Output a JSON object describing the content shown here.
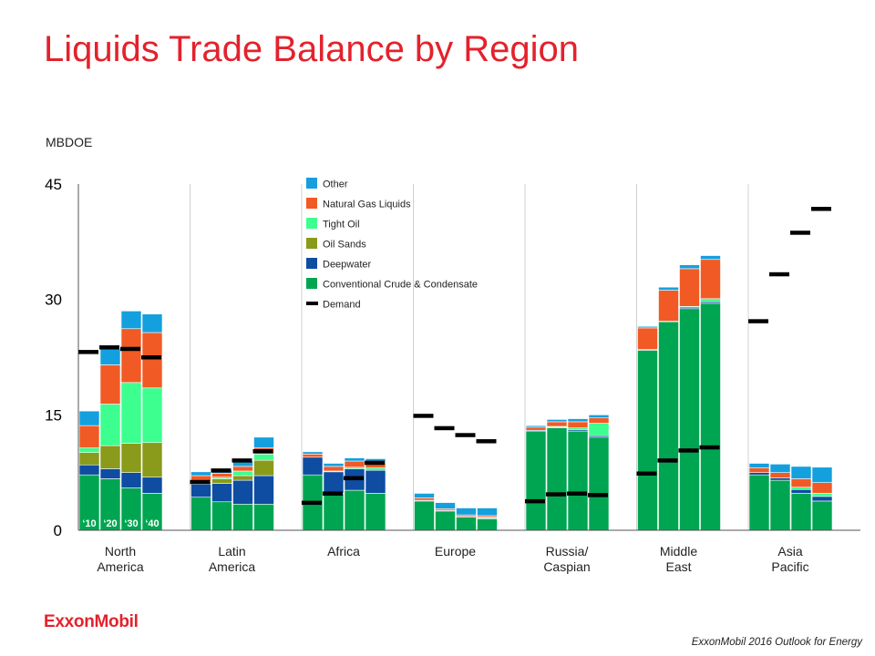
{
  "title": "Liquids Trade Balance by Region",
  "unit_label": "MBDOE",
  "logo_text": "ExxonMobil",
  "footer": "ExxonMobil 2016 Outlook for Energy",
  "chart_data": {
    "type": "bar",
    "stacked": true,
    "ylim": [
      0,
      45
    ],
    "yticks": [
      0,
      15,
      30,
      45
    ],
    "year_labels": [
      "‘10",
      "‘20",
      "‘30",
      "‘40"
    ],
    "colors": {
      "Conventional Crude & Condensate": "#00a551",
      "Deepwater": "#0e4da2",
      "Oil Sands": "#8a9a1b",
      "Tight Oil": "#3dff8f",
      "Natural Gas Liquids": "#f15a24",
      "Other": "#14a0de",
      "Demand": "#000000"
    },
    "legend": [
      "Other",
      "Natural Gas Liquids",
      "Tight Oil",
      "Oil Sands",
      "Deepwater",
      "Conventional Crude & Condensate",
      "Demand"
    ],
    "stack_order": [
      "Conventional Crude & Condensate",
      "Deepwater",
      "Oil Sands",
      "Tight Oil",
      "Natural Gas Liquids",
      "Other"
    ],
    "regions": [
      {
        "name": "North\nAmerica",
        "demand": [
          23.2,
          23.8,
          23.6,
          22.5
        ],
        "bars": [
          {
            "Conventional Crude & Condensate": 7.2,
            "Deepwater": 1.3,
            "Oil Sands": 1.6,
            "Tight Oil": 0.6,
            "Natural Gas Liquids": 2.9,
            "Other": 1.9
          },
          {
            "Conventional Crude & Condensate": 6.7,
            "Deepwater": 1.3,
            "Oil Sands": 3.0,
            "Tight Oil": 5.4,
            "Natural Gas Liquids": 5.1,
            "Other": 2.1
          },
          {
            "Conventional Crude & Condensate": 5.5,
            "Deepwater": 2.0,
            "Oil Sands": 3.8,
            "Tight Oil": 7.9,
            "Natural Gas Liquids": 7.0,
            "Other": 2.3
          },
          {
            "Conventional Crude & Condensate": 4.8,
            "Deepwater": 2.1,
            "Oil Sands": 4.5,
            "Tight Oil": 7.1,
            "Natural Gas Liquids": 7.2,
            "Other": 2.4
          }
        ]
      },
      {
        "name": "Latin\nAmerica",
        "demand": [
          6.3,
          7.8,
          9.1,
          10.3
        ],
        "bars": [
          {
            "Conventional Crude & Condensate": 4.3,
            "Deepwater": 1.7,
            "Oil Sands": 0.3,
            "Tight Oil": 0.1,
            "Natural Gas Liquids": 0.7,
            "Other": 0.5
          },
          {
            "Conventional Crude & Condensate": 3.7,
            "Deepwater": 2.4,
            "Oil Sands": 0.6,
            "Tight Oil": 0.2,
            "Natural Gas Liquids": 0.5,
            "Other": 0.4
          },
          {
            "Conventional Crude & Condensate": 3.4,
            "Deepwater": 3.1,
            "Oil Sands": 0.6,
            "Tight Oil": 0.6,
            "Natural Gas Liquids": 0.6,
            "Other": 0.7
          },
          {
            "Conventional Crude & Condensate": 3.4,
            "Deepwater": 3.7,
            "Oil Sands": 2.0,
            "Tight Oil": 0.8,
            "Natural Gas Liquids": 0.8,
            "Other": 1.4
          }
        ]
      },
      {
        "name": "Africa",
        "demand": [
          3.6,
          4.8,
          6.8,
          8.8
        ],
        "bars": [
          {
            "Conventional Crude & Condensate": 7.2,
            "Deepwater": 2.3,
            "Oil Sands": 0,
            "Tight Oil": 0,
            "Natural Gas Liquids": 0.4,
            "Other": 0.3
          },
          {
            "Conventional Crude & Condensate": 4.8,
            "Deepwater": 2.8,
            "Oil Sands": 0,
            "Tight Oil": 0.1,
            "Natural Gas Liquids": 0.6,
            "Other": 0.4
          },
          {
            "Conventional Crude & Condensate": 5.2,
            "Deepwater": 2.8,
            "Oil Sands": 0,
            "Tight Oil": 0.2,
            "Natural Gas Liquids": 0.8,
            "Other": 0.4
          },
          {
            "Conventional Crude & Condensate": 4.8,
            "Deepwater": 3.0,
            "Oil Sands": 0,
            "Tight Oil": 0.3,
            "Natural Gas Liquids": 0.7,
            "Other": 0.5
          }
        ]
      },
      {
        "name": "Europe",
        "demand": [
          14.9,
          13.3,
          12.4,
          11.6
        ],
        "bars": [
          {
            "Conventional Crude & Condensate": 3.8,
            "Deepwater": 0.1,
            "Oil Sands": 0,
            "Tight Oil": 0,
            "Natural Gas Liquids": 0.3,
            "Other": 0.6
          },
          {
            "Conventional Crude & Condensate": 2.5,
            "Deepwater": 0.1,
            "Oil Sands": 0,
            "Tight Oil": 0,
            "Natural Gas Liquids": 0.2,
            "Other": 0.8
          },
          {
            "Conventional Crude & Condensate": 1.7,
            "Deepwater": 0.1,
            "Oil Sands": 0,
            "Tight Oil": 0,
            "Natural Gas Liquids": 0.2,
            "Other": 0.9
          },
          {
            "Conventional Crude & Condensate": 1.5,
            "Deepwater": 0.1,
            "Oil Sands": 0,
            "Tight Oil": 0.1,
            "Natural Gas Liquids": 0.2,
            "Other": 1.0
          }
        ]
      },
      {
        "name": "Russia/\nCaspian",
        "demand": [
          3.8,
          4.7,
          4.8,
          4.6
        ],
        "bars": [
          {
            "Conventional Crude & Condensate": 12.9,
            "Deepwater": 0.1,
            "Oil Sands": 0,
            "Tight Oil": 0,
            "Natural Gas Liquids": 0.4,
            "Other": 0.2
          },
          {
            "Conventional Crude & Condensate": 13.3,
            "Deepwater": 0.1,
            "Oil Sands": 0,
            "Tight Oil": 0.1,
            "Natural Gas Liquids": 0.6,
            "Other": 0.3
          },
          {
            "Conventional Crude & Condensate": 12.9,
            "Deepwater": 0.2,
            "Oil Sands": 0,
            "Tight Oil": 0.2,
            "Natural Gas Liquids": 0.8,
            "Other": 0.4
          },
          {
            "Conventional Crude & Condensate": 12.1,
            "Deepwater": 0.2,
            "Oil Sands": 0,
            "Tight Oil": 1.6,
            "Natural Gas Liquids": 0.7,
            "Other": 0.4
          }
        ]
      },
      {
        "name": "Middle\nEast",
        "demand": [
          7.4,
          9.1,
          10.4,
          10.8
        ],
        "bars": [
          {
            "Conventional Crude & Condensate": 23.4,
            "Deepwater": 0.1,
            "Oil Sands": 0,
            "Tight Oil": 0,
            "Natural Gas Liquids": 2.8,
            "Other": 0.2
          },
          {
            "Conventional Crude & Condensate": 27.1,
            "Deepwater": 0.1,
            "Oil Sands": 0,
            "Tight Oil": 0,
            "Natural Gas Liquids": 4.0,
            "Other": 0.4
          },
          {
            "Conventional Crude & Condensate": 28.8,
            "Deepwater": 0.2,
            "Oil Sands": 0,
            "Tight Oil": 0.1,
            "Natural Gas Liquids": 4.9,
            "Other": 0.5
          },
          {
            "Conventional Crude & Condensate": 29.5,
            "Deepwater": 0.2,
            "Oil Sands": 0,
            "Tight Oil": 0.4,
            "Natural Gas Liquids": 5.1,
            "Other": 0.5
          }
        ]
      },
      {
        "name": "Asia\nPacific",
        "demand": [
          27.2,
          33.3,
          38.7,
          41.8
        ],
        "bars": [
          {
            "Conventional Crude & Condensate": 7.2,
            "Deepwater": 0.3,
            "Oil Sands": 0,
            "Tight Oil": 0,
            "Natural Gas Liquids": 0.6,
            "Other": 0.6
          },
          {
            "Conventional Crude & Condensate": 6.5,
            "Deepwater": 0.3,
            "Oil Sands": 0,
            "Tight Oil": 0,
            "Natural Gas Liquids": 0.7,
            "Other": 1.1
          },
          {
            "Conventional Crude & Condensate": 4.8,
            "Deepwater": 0.5,
            "Oil Sands": 0,
            "Tight Oil": 0.3,
            "Natural Gas Liquids": 1.1,
            "Other": 1.6
          },
          {
            "Conventional Crude & Condensate": 3.8,
            "Deepwater": 0.6,
            "Oil Sands": 0,
            "Tight Oil": 0.4,
            "Natural Gas Liquids": 1.4,
            "Other": 2.0
          }
        ]
      }
    ]
  }
}
